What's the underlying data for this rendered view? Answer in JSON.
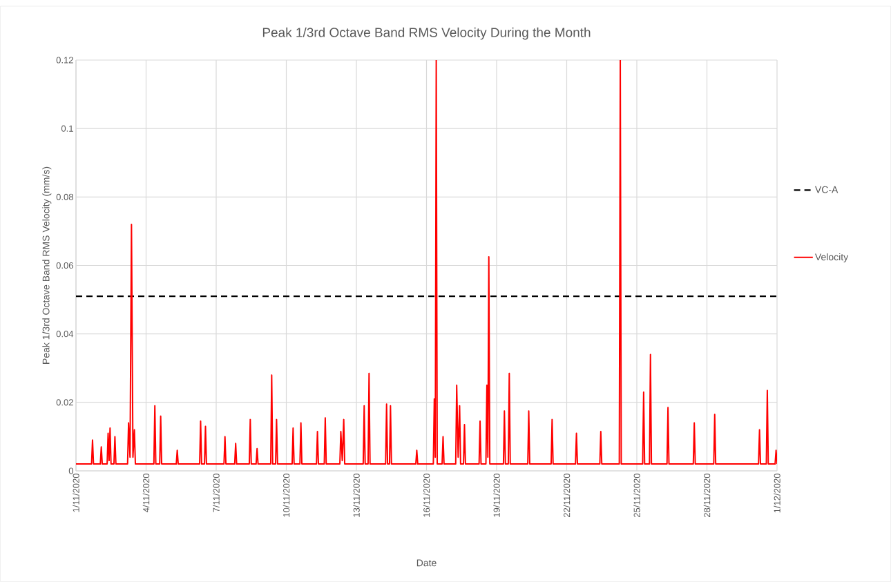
{
  "chart_data": {
    "type": "line",
    "title": "Peak 1/3rd Octave Band RMS Velocity During the Month",
    "xlabel": "Date",
    "ylabel": "Peak 1/3rd Octave Band RMS Velocity (mm/s)",
    "xlim": [
      "2020-11-01",
      "2020-12-01"
    ],
    "xticks": [
      {
        "value": "2020-11-01",
        "label": "1/11/2020"
      },
      {
        "value": "2020-11-04",
        "label": "4/11/2020"
      },
      {
        "value": "2020-11-07",
        "label": "7/11/2020"
      },
      {
        "value": "2020-11-10",
        "label": "10/11/2020"
      },
      {
        "value": "2020-11-13",
        "label": "13/11/2020"
      },
      {
        "value": "2020-11-16",
        "label": "16/11/2020"
      },
      {
        "value": "2020-11-19",
        "label": "19/11/2020"
      },
      {
        "value": "2020-11-22",
        "label": "22/11/2020"
      },
      {
        "value": "2020-11-25",
        "label": "25/11/2020"
      },
      {
        "value": "2020-11-28",
        "label": "28/11/2020"
      },
      {
        "value": "2020-12-01",
        "label": "1/12/2020"
      }
    ],
    "ylim": [
      0,
      0.12
    ],
    "yticks": [
      0,
      0.02,
      0.04,
      0.06,
      0.08,
      0.1,
      0.12
    ],
    "grid": true,
    "legend": "right",
    "ref_lines": [
      {
        "axis": "y",
        "value": 0.051,
        "label": "VC-A",
        "color": "#000000",
        "line_style": "dashed"
      }
    ],
    "series": [
      {
        "name": "Velocity",
        "color": "#ff0000",
        "x": [
          "2020-11-01T00:00",
          "2020-11-01T16:00",
          "2020-11-01T17:00",
          "2020-11-01T18:00",
          "2020-11-02T01:00",
          "2020-11-02T02:00",
          "2020-11-02T03:00",
          "2020-11-02T08:00",
          "2020-11-02T09:00",
          "2020-11-02T10:00",
          "2020-11-02T11:00",
          "2020-11-02T12:00",
          "2020-11-02T15:00",
          "2020-11-02T16:00",
          "2020-11-02T17:00",
          "2020-11-03T05:00",
          "2020-11-03T06:00",
          "2020-11-03T07:30",
          "2020-11-03T09:00",
          "2020-11-03T10:30",
          "2020-11-03T12:00",
          "2020-11-03T13:00",
          "2020-11-04T08:00",
          "2020-11-04T09:00",
          "2020-11-04T10:00",
          "2020-11-04T14:00",
          "2020-11-04T15:00",
          "2020-11-04T16:00",
          "2020-11-05T07:00",
          "2020-11-05T08:00",
          "2020-11-05T09:00",
          "2020-11-06T07:00",
          "2020-11-06T08:00",
          "2020-11-06T09:00",
          "2020-11-06T12:00",
          "2020-11-06T13:00",
          "2020-11-06T14:00",
          "2020-11-07T08:00",
          "2020-11-07T09:00",
          "2020-11-07T10:00",
          "2020-11-07T19:00",
          "2020-11-07T20:00",
          "2020-11-07T21:00",
          "2020-11-08T10:00",
          "2020-11-08T11:00",
          "2020-11-08T12:00",
          "2020-11-08T17:00",
          "2020-11-08T18:00",
          "2020-11-08T19:00",
          "2020-11-09T08:00",
          "2020-11-09T09:00",
          "2020-11-09T10:00",
          "2020-11-09T13:00",
          "2020-11-09T14:00",
          "2020-11-09T15:00",
          "2020-11-10T06:00",
          "2020-11-10T07:00",
          "2020-11-10T08:00",
          "2020-11-10T14:00",
          "2020-11-10T15:00",
          "2020-11-10T16:00",
          "2020-11-11T07:00",
          "2020-11-11T08:00",
          "2020-11-11T09:00",
          "2020-11-11T15:00",
          "2020-11-11T16:00",
          "2020-11-11T17:00",
          "2020-11-12T07:00",
          "2020-11-12T08:00",
          "2020-11-12T09:30",
          "2020-11-12T11:00",
          "2020-11-12T12:00",
          "2020-11-13T07:00",
          "2020-11-13T08:00",
          "2020-11-13T09:00",
          "2020-11-13T12:00",
          "2020-11-13T13:00",
          "2020-11-13T14:00",
          "2020-11-14T06:00",
          "2020-11-14T07:00",
          "2020-11-14T08:00",
          "2020-11-14T10:00",
          "2020-11-14T11:00",
          "2020-11-14T12:00",
          "2020-11-15T13:00",
          "2020-11-15T14:00",
          "2020-11-15T15:00",
          "2020-11-16T07:00",
          "2020-11-16T08:00",
          "2020-11-16T09:00",
          "2020-11-16T10:00",
          "2020-11-16T11:00",
          "2020-11-16T16:00",
          "2020-11-16T17:00",
          "2020-11-16T18:00",
          "2020-11-17T06:00",
          "2020-11-17T07:00",
          "2020-11-17T08:30",
          "2020-11-17T10:00",
          "2020-11-17T11:00",
          "2020-11-17T14:00",
          "2020-11-17T15:00",
          "2020-11-17T16:00",
          "2020-11-18T06:00",
          "2020-11-18T07:00",
          "2020-11-18T08:00",
          "2020-11-18T13:00",
          "2020-11-18T14:00",
          "2020-11-18T15:00",
          "2020-11-18T16:00",
          "2020-11-18T17:00",
          "2020-11-19T07:00",
          "2020-11-19T08:00",
          "2020-11-19T09:00",
          "2020-11-19T12:00",
          "2020-11-19T13:00",
          "2020-11-19T14:00",
          "2020-11-20T08:00",
          "2020-11-20T09:00",
          "2020-11-20T10:00",
          "2020-11-21T08:00",
          "2020-11-21T09:00",
          "2020-11-21T10:00",
          "2020-11-22T09:00",
          "2020-11-22T10:00",
          "2020-11-22T11:00",
          "2020-11-23T10:00",
          "2020-11-23T11:00",
          "2020-11-23T12:00",
          "2020-11-24T06:00",
          "2020-11-24T07:00",
          "2020-11-24T08:00",
          "2020-11-25T06:00",
          "2020-11-25T07:00",
          "2020-11-25T08:00",
          "2020-11-25T13:00",
          "2020-11-25T14:00",
          "2020-11-25T15:00",
          "2020-11-26T07:00",
          "2020-11-26T08:00",
          "2020-11-26T09:00",
          "2020-11-27T10:00",
          "2020-11-27T11:00",
          "2020-11-27T12:00",
          "2020-11-28T07:00",
          "2020-11-28T08:00",
          "2020-11-28T09:00",
          "2020-11-30T05:00",
          "2020-11-30T06:00",
          "2020-11-30T07:00",
          "2020-11-30T13:00",
          "2020-11-30T14:00",
          "2020-11-30T15:00",
          "2020-11-30T22:00",
          "2020-11-30T23:00",
          "2020-12-01T00:00"
        ],
        "values": [
          0.002,
          0.002,
          0.009,
          0.002,
          0.002,
          0.007,
          0.002,
          0.002,
          0.011,
          0.003,
          0.0125,
          0.002,
          0.002,
          0.01,
          0.002,
          0.002,
          0.014,
          0.004,
          0.072,
          0.004,
          0.012,
          0.002,
          0.002,
          0.019,
          0.002,
          0.002,
          0.016,
          0.002,
          0.002,
          0.006,
          0.002,
          0.002,
          0.0145,
          0.002,
          0.002,
          0.013,
          0.002,
          0.002,
          0.01,
          0.002,
          0.002,
          0.008,
          0.002,
          0.002,
          0.015,
          0.002,
          0.002,
          0.0065,
          0.002,
          0.002,
          0.028,
          0.002,
          0.002,
          0.015,
          0.002,
          0.002,
          0.0125,
          0.002,
          0.002,
          0.014,
          0.002,
          0.002,
          0.0115,
          0.002,
          0.002,
          0.0155,
          0.002,
          0.002,
          0.0115,
          0.003,
          0.015,
          0.002,
          0.002,
          0.019,
          0.002,
          0.002,
          0.0285,
          0.002,
          0.002,
          0.0195,
          0.002,
          0.002,
          0.019,
          0.002,
          0.002,
          0.006,
          0.002,
          0.002,
          0.021,
          0.004,
          0.12,
          0.002,
          0.002,
          0.01,
          0.002,
          0.002,
          0.025,
          0.004,
          0.019,
          0.002,
          0.002,
          0.0135,
          0.002,
          0.002,
          0.0145,
          0.002,
          0.002,
          0.025,
          0.004,
          0.0625,
          0.002,
          0.002,
          0.0175,
          0.002,
          0.002,
          0.0285,
          0.002,
          0.002,
          0.0175,
          0.002,
          0.002,
          0.015,
          0.002,
          0.002,
          0.011,
          0.002,
          0.002,
          0.0115,
          0.002,
          0.002,
          0.12,
          0.002,
          0.002,
          0.023,
          0.002,
          0.002,
          0.034,
          0.002,
          0.002,
          0.0185,
          0.002,
          0.002,
          0.014,
          0.002,
          0.002,
          0.0165,
          0.002,
          0.002,
          0.012,
          0.002,
          0.002,
          0.0235,
          0.002,
          0.002,
          0.006,
          0.002
        ]
      }
    ]
  }
}
